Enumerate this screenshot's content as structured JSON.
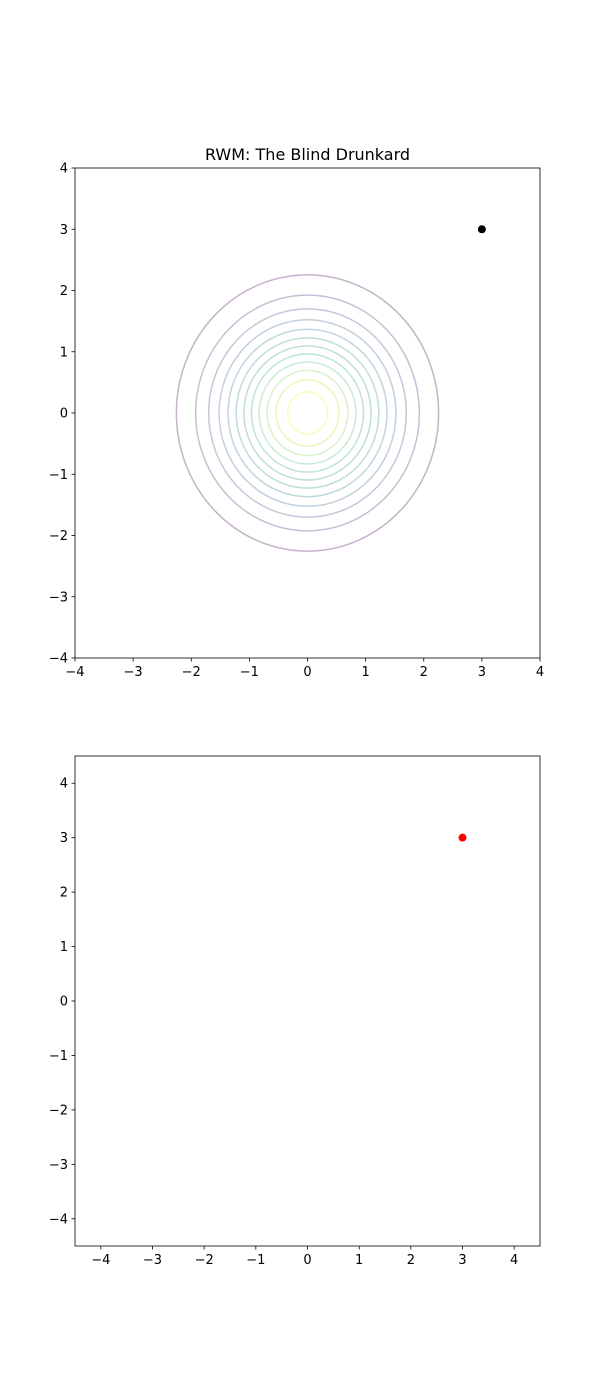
{
  "chart_data": [
    {
      "type": "contour",
      "title": "RWM: The Blind Drunkard",
      "xlabel": "",
      "ylabel": "",
      "xlim": [
        -4,
        4
      ],
      "ylim": [
        -4,
        4
      ],
      "xticks": [
        -4,
        -3,
        -2,
        -1,
        0,
        1,
        2,
        3,
        4
      ],
      "yticks": [
        -4,
        -3,
        -2,
        -1,
        0,
        1,
        2,
        3,
        4
      ],
      "grid": false,
      "contour": {
        "function": "standard bivariate normal density",
        "center": [
          0,
          0
        ],
        "levels": [
          0.0125,
          0.025,
          0.0375,
          0.05,
          0.0625,
          0.075,
          0.0875,
          0.1,
          0.1125,
          0.125,
          0.1375,
          0.15
        ],
        "colormap": "viridis",
        "alpha": 0.3
      },
      "points": [
        {
          "x": 3,
          "y": 3,
          "color": "#000000"
        }
      ]
    },
    {
      "type": "scatter",
      "title": "",
      "xlabel": "",
      "ylabel": "",
      "xlim": [
        -4.5,
        4.5
      ],
      "ylim": [
        -4.5,
        4.5
      ],
      "xticks": [
        -4,
        -3,
        -2,
        -1,
        0,
        1,
        2,
        3,
        4
      ],
      "yticks": [
        -4,
        -3,
        -2,
        -1,
        0,
        1,
        2,
        3,
        4
      ],
      "grid": false,
      "points": [
        {
          "x": 3,
          "y": 3,
          "color": "#ff0000"
        }
      ]
    }
  ]
}
